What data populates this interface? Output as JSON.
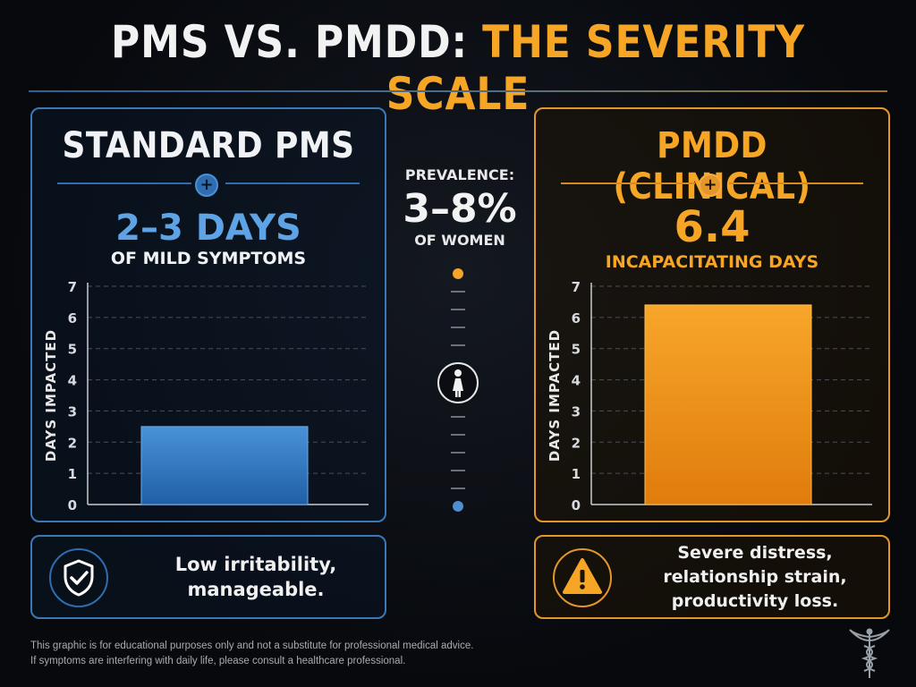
{
  "title": {
    "part1": "PMS VS. PMDD: ",
    "part2": "THE SEVERITY SCALE"
  },
  "colors": {
    "accent_blue": "#3a78b8",
    "accent_orange": "#f6a524",
    "background": "#07090d"
  },
  "left_panel": {
    "heading": "STANDARD PMS",
    "icon": "plus-icon",
    "big_number": "2–3 DAYS",
    "sub_label": "OF MILD SYMPTOMS",
    "bottom_text": "Low irritability, manageable.",
    "bottom_icon": "shield-check-icon"
  },
  "right_panel": {
    "heading": "PMDD (CLINICAL)",
    "icon": "plus-icon",
    "big_number": "6.4",
    "sub_label": "INCAPACITATING DAYS",
    "bottom_text": "Severe distress, relationship strain, productivity loss.",
    "bottom_icon": "warning-icon"
  },
  "center": {
    "prevalence_label": "PREVALENCE:",
    "prevalence_value": "3–8%",
    "prevalence_sub": "OF WOMEN",
    "icon": "woman-icon"
  },
  "chart_data": [
    {
      "type": "bar",
      "categories": [
        "Standard PMS"
      ],
      "values": [
        2.5
      ],
      "ylabel": "DAYS IMPACTED",
      "ylim": [
        0,
        7
      ],
      "yticks": [
        0,
        1,
        2,
        3,
        4,
        5,
        6,
        7
      ],
      "grid": true,
      "color": "#3a7fc8"
    },
    {
      "type": "bar",
      "categories": [
        "PMDD (Clinical)"
      ],
      "values": [
        6.4
      ],
      "ylabel": "DAYS IMPACTED",
      "ylim": [
        0,
        7
      ],
      "yticks": [
        0,
        1,
        2,
        3,
        4,
        5,
        6,
        7
      ],
      "grid": true,
      "color": "#f09a1c"
    }
  ],
  "disclaimer": {
    "line1": "This graphic is for educational purposes only and not a substitute for professional medical advice.",
    "line2": "If symptoms are interfering with daily life, please consult a healthcare professional."
  },
  "footer_icon": "caduceus-icon"
}
